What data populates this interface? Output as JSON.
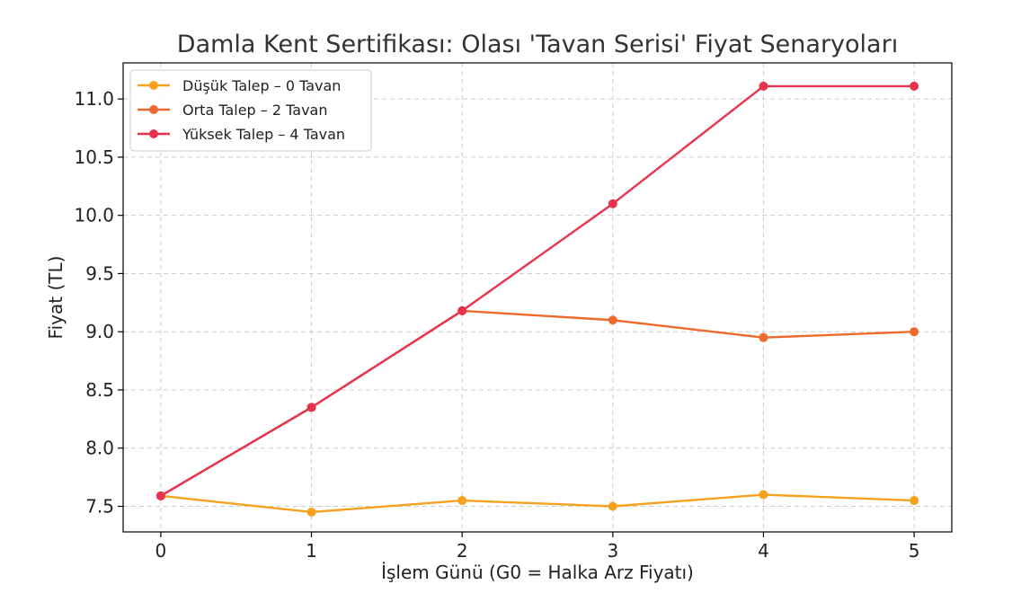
{
  "chart_data": {
    "type": "line",
    "title": "Damla Kent Sertifikası: Olası 'Tavan Serisi' Fiyat Senaryoları",
    "xlabel": "İşlem Günü (G0 = Halka Arz Fiyatı)",
    "ylabel": "Fiyat (TL)",
    "x": [
      0,
      1,
      2,
      3,
      4,
      5
    ],
    "xticks": [
      "0",
      "1",
      "2",
      "3",
      "4",
      "5"
    ],
    "yticks": [
      "7.5",
      "8.0",
      "8.5",
      "9.0",
      "9.5",
      "10.0",
      "10.5",
      "11.0"
    ],
    "xlim": [
      -0.25,
      5.25
    ],
    "ylim": [
      7.28,
      11.31
    ],
    "grid": true,
    "legend_position": "top-left",
    "series": [
      {
        "name": "Düşük Talep – 0 Tavan",
        "color": "#F6A21E",
        "values": [
          7.59,
          7.45,
          7.55,
          7.5,
          7.6,
          7.55
        ]
      },
      {
        "name": "Orta Talep – 2 Tavan",
        "color": "#EE6A2C",
        "values": [
          7.59,
          8.35,
          9.18,
          9.1,
          8.95,
          9.0
        ]
      },
      {
        "name": "Yüksek Talep – 4 Tavan",
        "color": "#E8334F",
        "values": [
          7.59,
          8.35,
          9.18,
          10.1,
          11.11,
          11.11
        ]
      }
    ]
  }
}
